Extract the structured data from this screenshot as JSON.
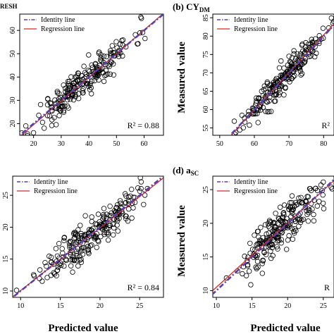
{
  "figure": {
    "x_label": "Predicted value",
    "y_label": "Measured value"
  },
  "legend": {
    "identity": "Identity line",
    "regression": "Regression line"
  },
  "colors": {
    "identity": "#5b3fa8",
    "regression": "#d62728",
    "points": "#000000"
  },
  "chart_data": [
    {
      "type": "scatter",
      "panel_label": "RESH",
      "r2_text": "R² = 0.88",
      "xlim": [
        15,
        67
      ],
      "ylim": [
        15,
        67
      ],
      "xticks": [
        20,
        30,
        40,
        50,
        60
      ],
      "yticks": [
        20,
        30,
        40,
        50,
        60
      ],
      "n_points": 230,
      "center": 38,
      "spread": 9,
      "noise": 3.5,
      "seed": 11,
      "x": [],
      "y": []
    },
    {
      "type": "scatter",
      "panel_label": "(b) CY",
      "panel_label_sub": "DM",
      "r2_text": "R²",
      "xlim": [
        48,
        83
      ],
      "ylim": [
        53,
        86
      ],
      "xticks": [
        50,
        60,
        70,
        80
      ],
      "yticks": [
        55,
        60,
        65,
        70,
        75,
        80,
        85
      ],
      "n_points": 230,
      "center": 68,
      "spread": 6.5,
      "noise": 1.8,
      "seed": 23,
      "x": [],
      "y": []
    },
    {
      "type": "scatter",
      "panel_label": "",
      "r2_text": "R² = 0.84",
      "xlim": [
        9,
        28
      ],
      "ylim": [
        9,
        28
      ],
      "xticks": [
        10,
        15,
        20,
        25
      ],
      "yticks": [
        10,
        15,
        20,
        25
      ],
      "n_points": 230,
      "center": 18.8,
      "spread": 3,
      "noise": 1.5,
      "seed": 37,
      "x": [],
      "y": []
    },
    {
      "type": "scatter",
      "panel_label": "(d) a",
      "panel_label_sub": "SC",
      "r2_text": "R",
      "xlim": [
        9.5,
        26.5
      ],
      "ylim": [
        9,
        27
      ],
      "xticks": [
        10,
        15,
        20,
        25
      ],
      "yticks": [
        10,
        15,
        20,
        25
      ],
      "n_points": 230,
      "center": 19,
      "spread": 3,
      "noise": 1.6,
      "seed": 51,
      "x": [],
      "y": []
    }
  ]
}
